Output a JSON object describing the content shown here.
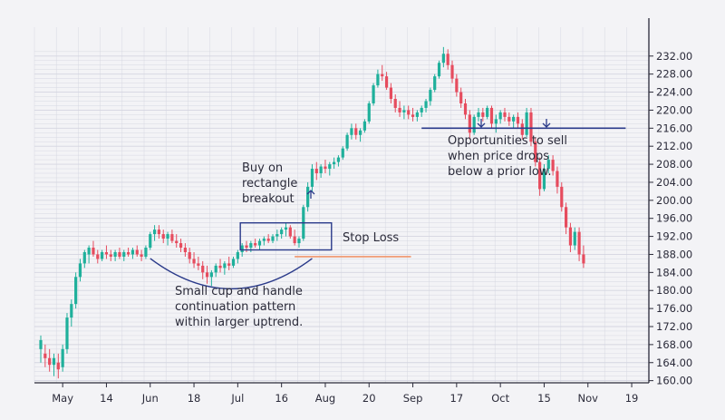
{
  "chart_data": {
    "type": "candlestick",
    "colors": {
      "up": "#1fb09b",
      "down": "#e64c5e",
      "annotation": "#2a3a8a",
      "stop_loss": "#f0956a",
      "grid": "#d4d5e0",
      "background": "#f3f3f6"
    },
    "ylim": [
      157,
      235
    ],
    "yticks": [
      "160.00",
      "164.00",
      "168.00",
      "172.00",
      "176.00",
      "180.00",
      "184.00",
      "188.00",
      "192.00",
      "196.00",
      "200.00",
      "204.00",
      "208.00",
      "212.00",
      "216.00",
      "220.00",
      "224.00",
      "228.00",
      "232.00"
    ],
    "xticks": [
      {
        "label": "May",
        "index": 5
      },
      {
        "label": "14",
        "index": 15
      },
      {
        "label": "Jun",
        "index": 25
      },
      {
        "label": "18",
        "index": 35
      },
      {
        "label": "Jul",
        "index": 45
      },
      {
        "label": "16",
        "index": 55
      },
      {
        "label": "Aug",
        "index": 65
      },
      {
        "label": "20",
        "index": 75
      },
      {
        "label": "Sep",
        "index": 85
      },
      {
        "label": "17",
        "index": 95
      },
      {
        "label": "Oct",
        "index": 105
      },
      {
        "label": "15",
        "index": 115
      },
      {
        "label": "Nov",
        "index": 125
      },
      {
        "label": "19",
        "index": 135
      }
    ],
    "series": [
      {
        "o": 167,
        "h": 170,
        "l": 164,
        "c": 169
      },
      {
        "o": 166,
        "h": 168,
        "l": 163,
        "c": 165
      },
      {
        "o": 165,
        "h": 167,
        "l": 162,
        "c": 163.5
      },
      {
        "o": 163.5,
        "h": 166,
        "l": 161,
        "c": 165
      },
      {
        "o": 164,
        "h": 166,
        "l": 160.5,
        "c": 162.5
      },
      {
        "o": 163,
        "h": 168,
        "l": 162,
        "c": 167
      },
      {
        "o": 167,
        "h": 175,
        "l": 166,
        "c": 174
      },
      {
        "o": 174,
        "h": 178,
        "l": 172,
        "c": 177
      },
      {
        "o": 177,
        "h": 184,
        "l": 176,
        "c": 183
      },
      {
        "o": 183,
        "h": 187,
        "l": 182,
        "c": 186
      },
      {
        "o": 186,
        "h": 189,
        "l": 185,
        "c": 188.5
      },
      {
        "o": 188,
        "h": 190,
        "l": 186,
        "c": 189.5
      },
      {
        "o": 189.5,
        "h": 191,
        "l": 187.5,
        "c": 188
      },
      {
        "o": 188,
        "h": 189,
        "l": 186,
        "c": 187
      },
      {
        "o": 187,
        "h": 189,
        "l": 186.5,
        "c": 188.5
      },
      {
        "o": 188.5,
        "h": 190,
        "l": 187,
        "c": 188
      },
      {
        "o": 188,
        "h": 189,
        "l": 186.5,
        "c": 187.5
      },
      {
        "o": 187.5,
        "h": 189,
        "l": 186.5,
        "c": 188.5
      },
      {
        "o": 188.5,
        "h": 189.5,
        "l": 187,
        "c": 187.5
      },
      {
        "o": 187.5,
        "h": 189,
        "l": 186.5,
        "c": 188.5
      },
      {
        "o": 188.5,
        "h": 189.5,
        "l": 187.5,
        "c": 188
      },
      {
        "o": 188,
        "h": 189.5,
        "l": 187,
        "c": 189
      },
      {
        "o": 189,
        "h": 190,
        "l": 187.5,
        "c": 188
      },
      {
        "o": 188,
        "h": 189,
        "l": 186.5,
        "c": 187.5
      },
      {
        "o": 187.5,
        "h": 190,
        "l": 187,
        "c": 189.5
      },
      {
        "o": 189.5,
        "h": 193,
        "l": 189,
        "c": 192.5
      },
      {
        "o": 192.5,
        "h": 194.5,
        "l": 191,
        "c": 193.5
      },
      {
        "o": 193.5,
        "h": 194.5,
        "l": 191.5,
        "c": 192.5
      },
      {
        "o": 192.5,
        "h": 193.5,
        "l": 190.5,
        "c": 191.5
      },
      {
        "o": 191.5,
        "h": 193,
        "l": 190,
        "c": 192.5
      },
      {
        "o": 192.5,
        "h": 193.5,
        "l": 190.5,
        "c": 191
      },
      {
        "o": 191,
        "h": 192.5,
        "l": 189.5,
        "c": 190.5
      },
      {
        "o": 190.5,
        "h": 191.5,
        "l": 188.5,
        "c": 189.5
      },
      {
        "o": 189.5,
        "h": 190.5,
        "l": 187.5,
        "c": 188.5
      },
      {
        "o": 188.5,
        "h": 189.5,
        "l": 186,
        "c": 187
      },
      {
        "o": 187,
        "h": 188.5,
        "l": 185,
        "c": 186
      },
      {
        "o": 186,
        "h": 187.5,
        "l": 184.5,
        "c": 185.5
      },
      {
        "o": 185.5,
        "h": 186.5,
        "l": 182.5,
        "c": 184
      },
      {
        "o": 184,
        "h": 185.5,
        "l": 181.5,
        "c": 183
      },
      {
        "o": 183,
        "h": 184.5,
        "l": 181,
        "c": 184
      },
      {
        "o": 184,
        "h": 186,
        "l": 183,
        "c": 185.5
      },
      {
        "o": 185.5,
        "h": 187,
        "l": 184,
        "c": 185
      },
      {
        "o": 185,
        "h": 186.5,
        "l": 183.5,
        "c": 186
      },
      {
        "o": 186,
        "h": 187.5,
        "l": 184.5,
        "c": 185.5
      },
      {
        "o": 185.5,
        "h": 187.5,
        "l": 185,
        "c": 187
      },
      {
        "o": 187,
        "h": 189,
        "l": 186,
        "c": 188.5
      },
      {
        "o": 188.5,
        "h": 190.5,
        "l": 187.5,
        "c": 190
      },
      {
        "o": 190,
        "h": 191,
        "l": 188.5,
        "c": 189.5
      },
      {
        "o": 189.5,
        "h": 191,
        "l": 188.5,
        "c": 190.5
      },
      {
        "o": 190.5,
        "h": 191.5,
        "l": 189.5,
        "c": 190
      },
      {
        "o": 190,
        "h": 191.5,
        "l": 189,
        "c": 191
      },
      {
        "o": 191,
        "h": 192,
        "l": 190,
        "c": 191.5
      },
      {
        "o": 191.5,
        "h": 192.5,
        "l": 190.5,
        "c": 191
      },
      {
        "o": 191,
        "h": 192.5,
        "l": 190.5,
        "c": 192
      },
      {
        "o": 192,
        "h": 193.5,
        "l": 191,
        "c": 192.5
      },
      {
        "o": 192.5,
        "h": 194,
        "l": 191.5,
        "c": 193.5
      },
      {
        "o": 193.5,
        "h": 195,
        "l": 192,
        "c": 194
      },
      {
        "o": 194,
        "h": 194.5,
        "l": 191.5,
        "c": 192
      },
      {
        "o": 192,
        "h": 193.5,
        "l": 190,
        "c": 190.5
      },
      {
        "o": 190.5,
        "h": 192,
        "l": 189.5,
        "c": 191.5
      },
      {
        "o": 191.5,
        "h": 199,
        "l": 191,
        "c": 198.5
      },
      {
        "o": 198.5,
        "h": 204,
        "l": 197.5,
        "c": 203
      },
      {
        "o": 203,
        "h": 208,
        "l": 202,
        "c": 207
      },
      {
        "o": 207,
        "h": 208.5,
        "l": 204.5,
        "c": 206
      },
      {
        "o": 206,
        "h": 208,
        "l": 205,
        "c": 207.5
      },
      {
        "o": 207.5,
        "h": 209,
        "l": 206,
        "c": 207
      },
      {
        "o": 207,
        "h": 208.5,
        "l": 205.5,
        "c": 208
      },
      {
        "o": 208,
        "h": 209.5,
        "l": 207,
        "c": 208.5
      },
      {
        "o": 208.5,
        "h": 210,
        "l": 207.5,
        "c": 209.5
      },
      {
        "o": 209.5,
        "h": 212,
        "l": 209,
        "c": 211.5
      },
      {
        "o": 211.5,
        "h": 215,
        "l": 211,
        "c": 214.5
      },
      {
        "o": 214.5,
        "h": 217,
        "l": 213.5,
        "c": 216
      },
      {
        "o": 216,
        "h": 217,
        "l": 213.5,
        "c": 214.5
      },
      {
        "o": 214.5,
        "h": 216,
        "l": 213,
        "c": 215.5
      },
      {
        "o": 215.5,
        "h": 218,
        "l": 215,
        "c": 217.5
      },
      {
        "o": 217.5,
        "h": 222,
        "l": 217,
        "c": 221.5
      },
      {
        "o": 221.5,
        "h": 226,
        "l": 221,
        "c": 225.5
      },
      {
        "o": 225.5,
        "h": 229,
        "l": 225,
        "c": 228
      },
      {
        "o": 228,
        "h": 230,
        "l": 226.5,
        "c": 227.5
      },
      {
        "o": 227.5,
        "h": 228.5,
        "l": 224.5,
        "c": 225
      },
      {
        "o": 225,
        "h": 226,
        "l": 221.5,
        "c": 222.5
      },
      {
        "o": 222.5,
        "h": 223.5,
        "l": 219.5,
        "c": 220.5
      },
      {
        "o": 220.5,
        "h": 222,
        "l": 218.5,
        "c": 219.5
      },
      {
        "o": 219.5,
        "h": 221,
        "l": 218,
        "c": 220
      },
      {
        "o": 220,
        "h": 221,
        "l": 218,
        "c": 219
      },
      {
        "o": 219,
        "h": 220.5,
        "l": 217.5,
        "c": 218.5
      },
      {
        "o": 218.5,
        "h": 220,
        "l": 217.5,
        "c": 219.5
      },
      {
        "o": 219.5,
        "h": 221,
        "l": 218.5,
        "c": 220.5
      },
      {
        "o": 220.5,
        "h": 222.5,
        "l": 219.5,
        "c": 222
      },
      {
        "o": 222,
        "h": 225,
        "l": 221,
        "c": 224.5
      },
      {
        "o": 224.5,
        "h": 228,
        "l": 224,
        "c": 227.5
      },
      {
        "o": 227.5,
        "h": 231,
        "l": 227,
        "c": 230.5
      },
      {
        "o": 230.5,
        "h": 234,
        "l": 229.5,
        "c": 232.5
      },
      {
        "o": 232.5,
        "h": 233.5,
        "l": 229,
        "c": 230
      },
      {
        "o": 230,
        "h": 231,
        "l": 226,
        "c": 227
      },
      {
        "o": 227,
        "h": 228,
        "l": 223,
        "c": 224
      },
      {
        "o": 224,
        "h": 225,
        "l": 220.5,
        "c": 221.5
      },
      {
        "o": 221.5,
        "h": 222.5,
        "l": 218,
        "c": 219
      },
      {
        "o": 219,
        "h": 220,
        "l": 213.5,
        "c": 215
      },
      {
        "o": 215,
        "h": 219,
        "l": 214.5,
        "c": 218.5
      },
      {
        "o": 218.5,
        "h": 220.5,
        "l": 217.5,
        "c": 219.5
      },
      {
        "o": 219.5,
        "h": 220.5,
        "l": 217.5,
        "c": 218.5
      },
      {
        "o": 218.5,
        "h": 221,
        "l": 218,
        "c": 220.5
      },
      {
        "o": 220.5,
        "h": 221,
        "l": 216,
        "c": 217
      },
      {
        "o": 217,
        "h": 219,
        "l": 215,
        "c": 218
      },
      {
        "o": 218,
        "h": 220,
        "l": 217,
        "c": 219.5
      },
      {
        "o": 219.5,
        "h": 220.5,
        "l": 217.5,
        "c": 218.5
      },
      {
        "o": 218.5,
        "h": 219.5,
        "l": 216.5,
        "c": 217.5
      },
      {
        "o": 217.5,
        "h": 219,
        "l": 216,
        "c": 218.5
      },
      {
        "o": 218.5,
        "h": 219.5,
        "l": 216,
        "c": 217
      },
      {
        "o": 217,
        "h": 218,
        "l": 213.5,
        "c": 214.5
      },
      {
        "o": 214.5,
        "h": 220.5,
        "l": 214,
        "c": 219.5
      },
      {
        "o": 219.5,
        "h": 220.5,
        "l": 212,
        "c": 213
      },
      {
        "o": 213,
        "h": 214,
        "l": 207.5,
        "c": 208.5
      },
      {
        "o": 208.5,
        "h": 209.5,
        "l": 201,
        "c": 202.5
      },
      {
        "o": 202.5,
        "h": 208,
        "l": 202,
        "c": 207
      },
      {
        "o": 207,
        "h": 210,
        "l": 206,
        "c": 209
      },
      {
        "o": 209,
        "h": 210,
        "l": 205.5,
        "c": 206.5
      },
      {
        "o": 206.5,
        "h": 207.5,
        "l": 201.5,
        "c": 203
      },
      {
        "o": 203,
        "h": 204,
        "l": 197.5,
        "c": 198.5
      },
      {
        "o": 198.5,
        "h": 199.5,
        "l": 192.5,
        "c": 194
      },
      {
        "o": 194,
        "h": 195,
        "l": 188.5,
        "c": 190
      },
      {
        "o": 190,
        "h": 194,
        "l": 189,
        "c": 193
      },
      {
        "o": 193,
        "h": 194,
        "l": 186.5,
        "c": 188
      },
      {
        "o": 188,
        "h": 190,
        "l": 185,
        "c": 186
      }
    ],
    "annotations": {
      "buy_text": [
        "Buy on",
        "rectangle",
        "breakout"
      ],
      "stop_text": "Stop Loss",
      "cup_text": [
        "Small cup and handle",
        "continuation pattern",
        "within larger uptrend."
      ],
      "sell_text": [
        "Opportunities to sell",
        "when price drops",
        "below a prior low."
      ],
      "rectangle": {
        "from_index": 46,
        "to_index": 66,
        "low": 189,
        "high": 195
      },
      "stop_loss": {
        "from_index": 58,
        "to_index": 85,
        "value": 187.5
      },
      "prior_low": {
        "from_index": 87,
        "to_index": 133,
        "value": 216
      },
      "cup": {
        "from_index": 25,
        "to_index": 62,
        "low": 180.5
      }
    }
  }
}
